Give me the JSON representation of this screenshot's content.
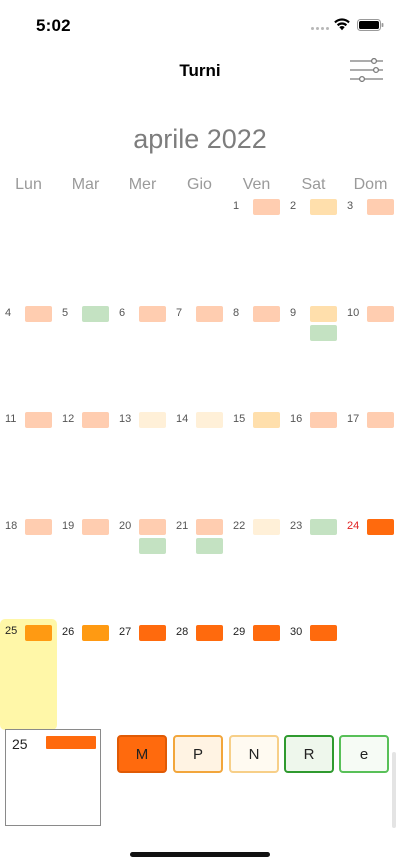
{
  "status": {
    "time": "5:02"
  },
  "nav": {
    "title": "Turni"
  },
  "calendar": {
    "month_title": "aprile 2022",
    "weekdays": [
      "Lun",
      "Mar",
      "Mer",
      "Gio",
      "Ven",
      "Sat",
      "Dom"
    ],
    "shift_colors": {
      "salmon": "#ffcdb0",
      "peach": "#ffdfac",
      "cream": "#fff0d8",
      "green": "#c4e2c2",
      "orange": "#ff6a0d",
      "amber": "#ff9a12"
    },
    "days": [
      {
        "label": "1",
        "shifts": [
          "salmon"
        ]
      },
      {
        "label": "2",
        "shifts": [
          "peach"
        ]
      },
      {
        "label": "3",
        "shifts": [
          "salmon"
        ]
      },
      {
        "label": "4",
        "shifts": [
          "salmon"
        ]
      },
      {
        "label": "5",
        "shifts": [
          "green"
        ]
      },
      {
        "label": "6",
        "shifts": [
          "salmon"
        ]
      },
      {
        "label": "7",
        "shifts": [
          "salmon"
        ]
      },
      {
        "label": "8",
        "shifts": [
          "salmon"
        ]
      },
      {
        "label": "9",
        "shifts": [
          "peach",
          "green"
        ]
      },
      {
        "label": "10",
        "shifts": [
          "salmon"
        ]
      },
      {
        "label": "11",
        "shifts": [
          "salmon"
        ]
      },
      {
        "label": "12",
        "shifts": [
          "salmon"
        ]
      },
      {
        "label": "13",
        "shifts": [
          "cream"
        ]
      },
      {
        "label": "14",
        "shifts": [
          "cream"
        ]
      },
      {
        "label": "15",
        "shifts": [
          "peach"
        ]
      },
      {
        "label": "16",
        "shifts": [
          "salmon"
        ]
      },
      {
        "label": "17",
        "shifts": [
          "salmon"
        ]
      },
      {
        "label": "18",
        "shifts": [
          "salmon"
        ]
      },
      {
        "label": "19",
        "shifts": [
          "salmon"
        ]
      },
      {
        "label": "20",
        "shifts": [
          "salmon",
          "green"
        ]
      },
      {
        "label": "21",
        "shifts": [
          "salmon",
          "green"
        ]
      },
      {
        "label": "22",
        "shifts": [
          "cream"
        ]
      },
      {
        "label": "23",
        "shifts": [
          "green"
        ]
      },
      {
        "label": "24",
        "shifts": [
          "orange"
        ],
        "sunday_red": true
      },
      {
        "label": "25",
        "shifts": [
          "amber"
        ],
        "selected": true
      },
      {
        "label": "26",
        "shifts": [
          "amber"
        ]
      },
      {
        "label": "27",
        "shifts": [
          "orange"
        ]
      },
      {
        "label": "28",
        "shifts": [
          "orange"
        ]
      },
      {
        "label": "29",
        "shifts": [
          "orange"
        ]
      },
      {
        "label": "30",
        "shifts": [
          "orange"
        ]
      }
    ]
  },
  "preview": {
    "day": "25",
    "shift_color": "#ff6a0d"
  },
  "shift_buttons": [
    {
      "label": "M",
      "fill": "#ff6a0d",
      "border": "#e05a05"
    },
    {
      "label": "P",
      "fill": "#fff3e3",
      "border": "#f2a63c"
    },
    {
      "label": "N",
      "fill": "#fffaf1",
      "border": "#f7cf88"
    },
    {
      "label": "R",
      "fill": "#eef7ec",
      "border": "#2f9a2f"
    },
    {
      "label": "e",
      "fill": "#f6fbf5",
      "border": "#58c058"
    }
  ]
}
